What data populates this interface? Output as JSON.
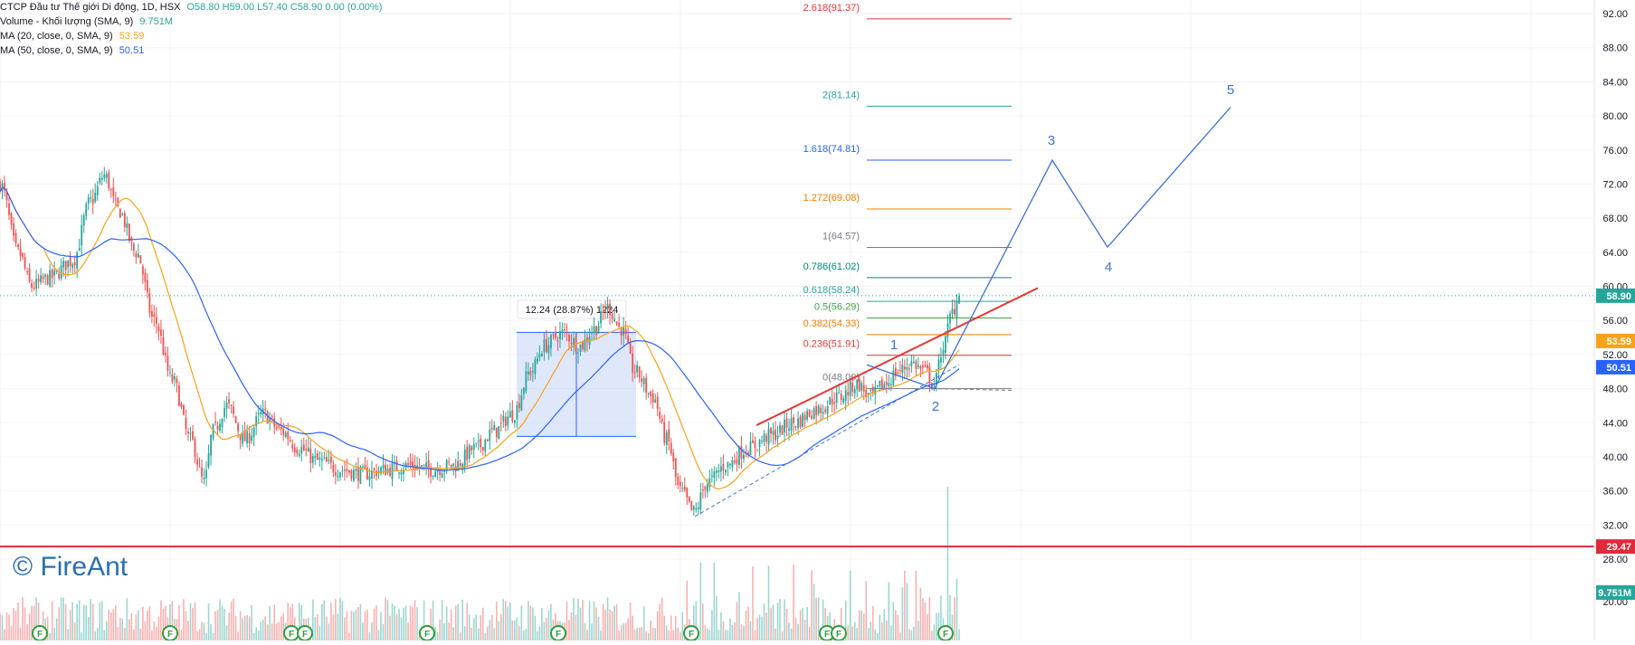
{
  "legend": {
    "symbol_line": "CTCP Đầu tư Thế giới Di động, 1D, HSX",
    "ohlc": "O58.80  H59.00  L57.40  C58.90  0.00 (0.00%)",
    "volume_label": "Volume - Khối lượng (SMA, 9)",
    "volume_value": "9.751M",
    "ma20_label": "MA (20, close, 0, SMA, 9)",
    "ma20_value": "53.59",
    "ma50_label": "MA (50, close, 0, SMA, 9)",
    "ma50_value": "50.51"
  },
  "watermark": "© FireAnt",
  "colors": {
    "up": "#26a69a",
    "down": "#ef5350",
    "ma20": "#f7a21b",
    "ma50": "#2962ff",
    "wave": "#3d72d6",
    "trend_red": "#e53935",
    "support_red": "#e0293b",
    "box_fill": "#c5d3f7"
  },
  "chart_data": {
    "type": "candlestick",
    "y_axis": {
      "min": 22,
      "max": 94,
      "ticks": [
        "92.00",
        "88.00",
        "84.00",
        "80.00",
        "76.00",
        "72.00",
        "68.00",
        "64.00",
        "60.00",
        "56.00",
        "52.00",
        "48.00",
        "44.00",
        "40.00",
        "36.00",
        "32.00",
        "28.00",
        "20.00"
      ],
      "tick_values": [
        92,
        88,
        84,
        80,
        76,
        72,
        68,
        64,
        60,
        56,
        52,
        48,
        44,
        40,
        36,
        32,
        28,
        20
      ]
    },
    "price_badges": [
      {
        "label": "58.90",
        "value": 58.9,
        "color": "#26a69a"
      },
      {
        "label": "53.59",
        "value": 53.59,
        "color": "#f7a21b"
      },
      {
        "label": "50.51",
        "value": 50.51,
        "color": "#2962ff"
      },
      {
        "label": "29.47",
        "value": 29.47,
        "color": "#e0293b"
      },
      {
        "label": "9.751M",
        "value": 25.5,
        "color": "#26a69a"
      }
    ],
    "last_price": 58.9,
    "support_level": 29.47,
    "fibonacci": {
      "base": 48.0,
      "levels": [
        {
          "label": "2.618(91.37)",
          "value": 91.37,
          "color": "#e53935"
        },
        {
          "label": "2(81.14)",
          "value": 81.14,
          "color": "#26a69a"
        },
        {
          "label": "1.618(74.81)",
          "value": 74.81,
          "color": "#2962ff"
        },
        {
          "label": "1.272(69.08)",
          "value": 69.08,
          "color": "#f57c00"
        },
        {
          "label": "1(64.57)",
          "value": 64.57,
          "color": "#787b86"
        },
        {
          "label": "0.786(61.02)",
          "value": 61.02,
          "color": "#00897b"
        },
        {
          "label": "0.618(58.24)",
          "value": 58.24,
          "color": "#26a69a"
        },
        {
          "label": "0.5(56.29)",
          "value": 56.29,
          "color": "#43a047"
        },
        {
          "label": "0.382(54.33)",
          "value": 54.33,
          "color": "#f57c00"
        },
        {
          "label": "0.236(51.91)",
          "value": 51.91,
          "color": "#e53935"
        },
        {
          "label": "0(48.00)",
          "value": 48.0,
          "color": "#787b86"
        }
      ]
    },
    "measure_box": {
      "label": "12.24 (28.87%) 1224",
      "from": 42.4,
      "to": 54.6
    },
    "elliott_waves": [
      {
        "label": "1",
        "value": 50.8
      },
      {
        "label": "2",
        "value": 48.0
      },
      {
        "label": "3",
        "value": 74.8
      },
      {
        "label": "4",
        "value": 64.6
      },
      {
        "label": "5",
        "value": 81.0
      }
    ],
    "anchor_prices": [
      {
        "bar": 0,
        "price": 72
      },
      {
        "bar": 8,
        "price": 64
      },
      {
        "bar": 14,
        "price": 60
      },
      {
        "bar": 22,
        "price": 61
      },
      {
        "bar": 32,
        "price": 63
      },
      {
        "bar": 40,
        "price": 70
      },
      {
        "bar": 46,
        "price": 73
      },
      {
        "bar": 52,
        "price": 69
      },
      {
        "bar": 60,
        "price": 64
      },
      {
        "bar": 68,
        "price": 56
      },
      {
        "bar": 76,
        "price": 49
      },
      {
        "bar": 84,
        "price": 42
      },
      {
        "bar": 90,
        "price": 37
      },
      {
        "bar": 94,
        "price": 43
      },
      {
        "bar": 100,
        "price": 46
      },
      {
        "bar": 108,
        "price": 42
      },
      {
        "bar": 116,
        "price": 45
      },
      {
        "bar": 124,
        "price": 43
      },
      {
        "bar": 132,
        "price": 41
      },
      {
        "bar": 140,
        "price": 39.5
      },
      {
        "bar": 150,
        "price": 38.5
      },
      {
        "bar": 160,
        "price": 38
      },
      {
        "bar": 170,
        "price": 38.5
      },
      {
        "bar": 180,
        "price": 39
      },
      {
        "bar": 190,
        "price": 38.5
      },
      {
        "bar": 200,
        "price": 39
      },
      {
        "bar": 210,
        "price": 41
      },
      {
        "bar": 218,
        "price": 43
      },
      {
        "bar": 226,
        "price": 45
      },
      {
        "bar": 234,
        "price": 50
      },
      {
        "bar": 240,
        "price": 53
      },
      {
        "bar": 248,
        "price": 54.5
      },
      {
        "bar": 256,
        "price": 53
      },
      {
        "bar": 262,
        "price": 55
      },
      {
        "bar": 268,
        "price": 57.5
      },
      {
        "bar": 274,
        "price": 55
      },
      {
        "bar": 280,
        "price": 50
      },
      {
        "bar": 288,
        "price": 47
      },
      {
        "bar": 294,
        "price": 42
      },
      {
        "bar": 300,
        "price": 36
      },
      {
        "bar": 306,
        "price": 33.5
      },
      {
        "bar": 312,
        "price": 37
      },
      {
        "bar": 320,
        "price": 39
      },
      {
        "bar": 330,
        "price": 41
      },
      {
        "bar": 340,
        "price": 42.5
      },
      {
        "bar": 350,
        "price": 44
      },
      {
        "bar": 360,
        "price": 45.5
      },
      {
        "bar": 370,
        "price": 47
      },
      {
        "bar": 378,
        "price": 48.5
      },
      {
        "bar": 384,
        "price": 47
      },
      {
        "bar": 390,
        "price": 48.5
      },
      {
        "bar": 396,
        "price": 50
      },
      {
        "bar": 402,
        "price": 51
      },
      {
        "bar": 408,
        "price": 50
      },
      {
        "bar": 412,
        "price": 48.5
      },
      {
        "bar": 416,
        "price": 53
      },
      {
        "bar": 420,
        "price": 57
      },
      {
        "bar": 423,
        "price": 58.9
      }
    ],
    "bar_count": 424,
    "event_markers": [
      "F",
      "F",
      "F",
      "F",
      "F",
      "F",
      "F",
      "F",
      "F",
      "F"
    ]
  }
}
